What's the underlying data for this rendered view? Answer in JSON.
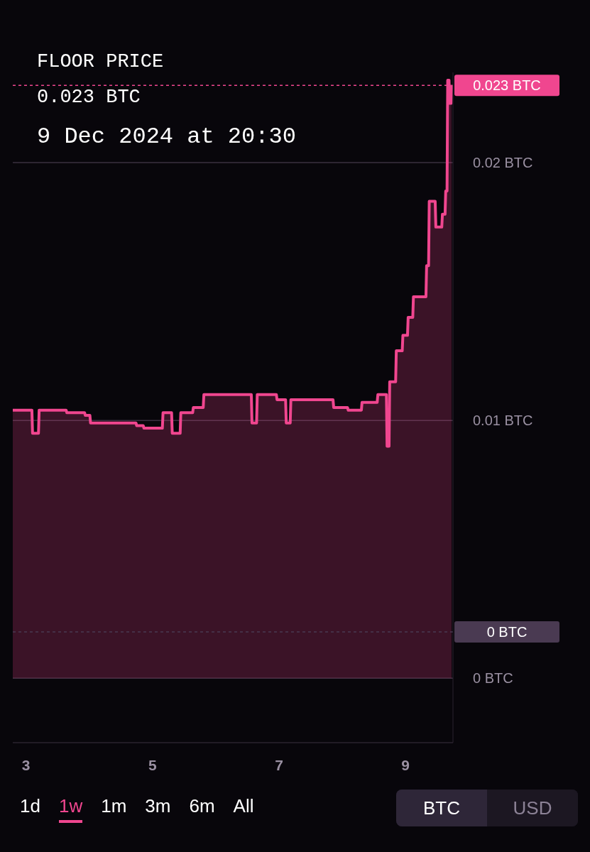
{
  "chart_data": {
    "type": "area",
    "title": "FLOOR PRICE",
    "subtitle": "0.023 BTC",
    "annotations": [
      "9 Dec 2024 at 20:30",
      "1d",
      "1w",
      "1m",
      "3m",
      "6m",
      "All",
      "BTC",
      "USD"
    ],
    "x": [
      "2024-12-02T19:00",
      "2024-12-03T02:15",
      "2024-12-03T02:30",
      "2024-12-03T04:45",
      "2024-12-03T05:00",
      "2024-12-03T15:15",
      "2024-12-03T15:30",
      "2024-12-03T22:15",
      "2024-12-03T22:30",
      "2024-12-04T00:15",
      "2024-12-04T00:30",
      "2024-12-04T17:45",
      "2024-12-04T18:00",
      "2024-12-04T20:30",
      "2024-12-04T20:45",
      "2024-12-05T03:45",
      "2024-12-05T04:00",
      "2024-12-05T07:15",
      "2024-12-05T07:30",
      "2024-12-05T10:30",
      "2024-12-05T10:45",
      "2024-12-05T15:15",
      "2024-12-05T15:30",
      "2024-12-05T19:15",
      "2024-12-05T19:30",
      "2024-12-06T13:30",
      "2024-12-06T13:45",
      "2024-12-06T15:30",
      "2024-12-06T15:45",
      "2024-12-06T23:00",
      "2024-12-06T23:15",
      "2024-12-07T02:30",
      "2024-12-07T02:45",
      "2024-12-07T04:15",
      "2024-12-07T04:30",
      "2024-12-07T20:30",
      "2024-12-07T20:45",
      "2024-12-08T02:00",
      "2024-12-08T02:15",
      "2024-12-08T07:15",
      "2024-12-08T07:30",
      "2024-12-08T13:15",
      "2024-12-08T13:30",
      "2024-12-08T16:45",
      "2024-12-08T17:00",
      "2024-12-08T17:45",
      "2024-12-08T18:00",
      "2024-12-08T20:15",
      "2024-12-08T20:30",
      "2024-12-08T22:45",
      "2024-12-08T23:00",
      "2024-12-09T00:45",
      "2024-12-09T01:00",
      "2024-12-09T02:45",
      "2024-12-09T03:00",
      "2024-12-09T07:45",
      "2024-12-09T08:00",
      "2024-12-09T08:45",
      "2024-12-09T09:00",
      "2024-12-09T11:15",
      "2024-12-09T11:30",
      "2024-12-09T13:45",
      "2024-12-09T14:00",
      "2024-12-09T15:00",
      "2024-12-09T15:15",
      "2024-12-09T15:45",
      "2024-12-09T16:00",
      "2024-12-09T16:30",
      "2024-12-09T16:45",
      "2024-12-09T17:15",
      "2024-12-09T17:30"
    ],
    "series": [
      {
        "color": "#f0468f",
        "values": [
          0.0104,
          0.0104,
          0.0095,
          0.0095,
          0.0104,
          0.0104,
          0.0103,
          0.0103,
          0.0102,
          0.0102,
          0.0099,
          0.0099,
          0.0098,
          0.0098,
          0.0097,
          0.0097,
          0.0103,
          0.0103,
          0.0095,
          0.0095,
          0.0103,
          0.0103,
          0.0105,
          0.0105,
          0.011,
          0.011,
          0.0099,
          0.0099,
          0.011,
          0.011,
          0.0108,
          0.0108,
          0.0099,
          0.0099,
          0.0108,
          0.0108,
          0.0105,
          0.0105,
          0.0104,
          0.0104,
          0.0107,
          0.0107,
          0.011,
          0.011,
          0.009,
          0.009,
          0.0115,
          0.0115,
          0.0127,
          0.0127,
          0.0133,
          0.0133,
          0.014,
          0.014,
          0.0148,
          0.0148,
          0.016,
          0.016,
          0.0185,
          0.0185,
          0.0175,
          0.0175,
          0.018,
          0.018,
          0.0189,
          0.0189,
          0.0232,
          0.0232,
          0.0223,
          0.0223,
          0.023
        ]
      }
    ],
    "xlim": [
      "2024-12-02T19:00",
      "2024-12-09T18:00"
    ],
    "xticks": [
      {
        "value": "2024-12-03",
        "label": "3"
      },
      {
        "value": "2024-12-05",
        "label": "5"
      },
      {
        "value": "2024-12-07",
        "label": "7"
      },
      {
        "value": "2024-12-09",
        "label": "9"
      }
    ],
    "ylim": [
      -0.0025,
      0.0235
    ],
    "yticks": [
      {
        "value": 0,
        "label": "0 BTC"
      },
      {
        "value": 0.01,
        "label": "0.01 BTC"
      },
      {
        "value": 0.02,
        "label": "0.02 BTC"
      }
    ],
    "grid": "y",
    "ref_lines": [
      {
        "axis": "y",
        "value": 0.023,
        "label": "0.023 BTC",
        "color": "#f0468f",
        "line_style": "dashed"
      },
      {
        "axis": "y",
        "value": 0.0018,
        "label": "0 BTC",
        "color": "#4a3a52",
        "line_style": "dashed"
      }
    ]
  }
}
